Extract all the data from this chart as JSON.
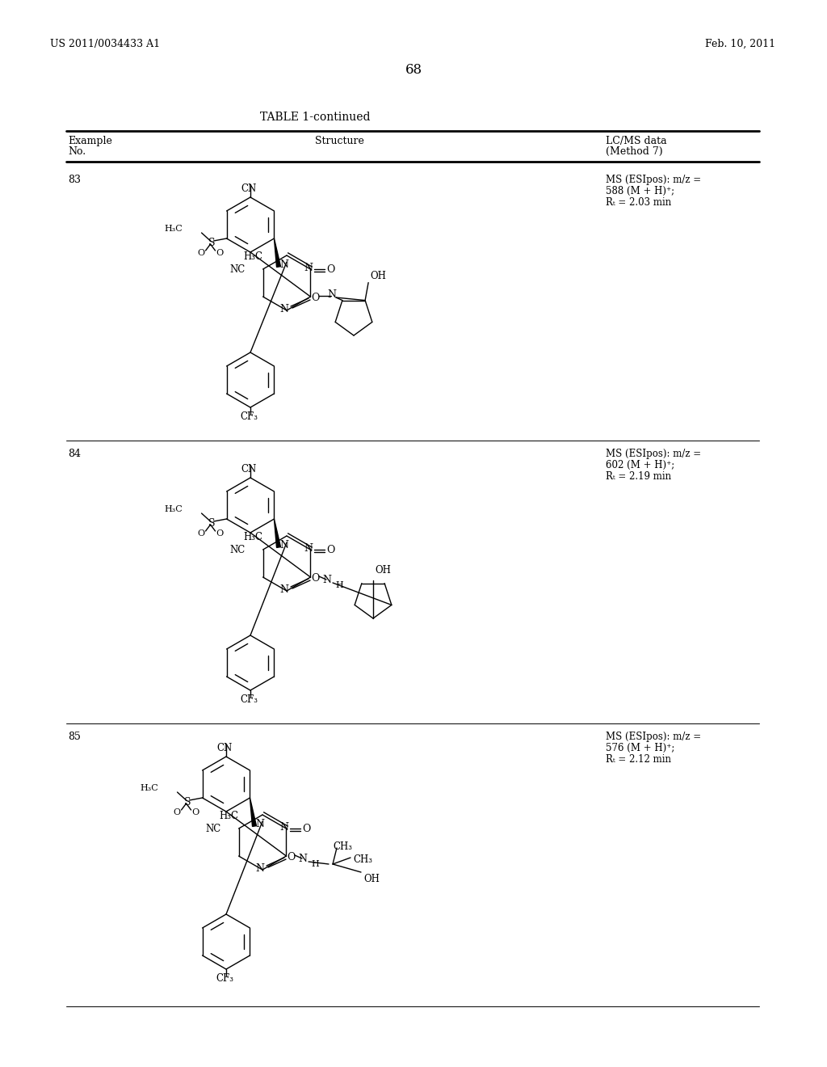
{
  "page_header_left": "US 2011/0034433 A1",
  "page_header_right": "Feb. 10, 2011",
  "page_number": "68",
  "table_title": "TABLE 1-continued",
  "col1_header1": "Example",
  "col1_header2": "No.",
  "col2_header": "Structure",
  "col3_header1": "LC/MS data",
  "col3_header2": "(Method 7)",
  "rows": [
    {
      "example_no": "83",
      "ms_line1": "MS (ESIpos): m/z =",
      "ms_line2": "588 (M + H)⁺;",
      "ms_line3": "Rₜ = 2.03 min"
    },
    {
      "example_no": "84",
      "ms_line1": "MS (ESIpos): m/z =",
      "ms_line2": "602 (M + H)⁺;",
      "ms_line3": "Rₜ = 2.19 min"
    },
    {
      "example_no": "85",
      "ms_line1": "MS (ESIpos): m/z =",
      "ms_line2": "576 (M + H)⁺;",
      "ms_line3": "Rₜ = 2.12 min"
    }
  ],
  "background_color": "#ffffff"
}
